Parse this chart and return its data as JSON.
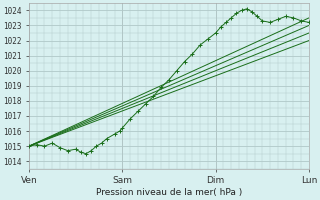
{
  "title": "Pression niveau de la mer( hPa )",
  "bg_color": "#d8f0f0",
  "grid_color": "#b0c8c8",
  "line_color": "#1a6e1a",
  "ylim": [
    1013.5,
    1024.5
  ],
  "yticks": [
    1014,
    1015,
    1016,
    1017,
    1018,
    1019,
    1020,
    1021,
    1022,
    1023,
    1024
  ],
  "day_labels": [
    "Ven",
    "Sam",
    "Dim",
    "Lun"
  ],
  "day_positions": [
    0,
    72,
    144,
    216
  ],
  "total_hours": 216,
  "linear_lines": [
    {
      "x": [
        0,
        216
      ],
      "y": [
        1015.0,
        1023.5
      ]
    },
    {
      "x": [
        0,
        216
      ],
      "y": [
        1015.0,
        1023.0
      ]
    },
    {
      "x": [
        0,
        216
      ],
      "y": [
        1015.0,
        1022.5
      ]
    },
    {
      "x": [
        0,
        216
      ],
      "y": [
        1015.0,
        1022.0
      ]
    }
  ],
  "forecast_x": [
    0,
    6,
    12,
    18,
    24,
    30,
    36,
    40,
    44,
    48,
    52,
    56,
    60,
    66,
    70,
    72,
    78,
    84,
    90,
    96,
    102,
    108,
    114,
    120,
    126,
    132,
    138,
    144,
    148,
    152,
    156,
    160,
    164,
    168,
    172,
    176,
    180,
    186,
    192,
    198,
    204,
    210,
    216
  ],
  "forecast_y": [
    1015.0,
    1015.1,
    1015.0,
    1015.2,
    1014.9,
    1014.7,
    1014.8,
    1014.6,
    1014.5,
    1014.7,
    1015.0,
    1015.2,
    1015.5,
    1015.8,
    1016.0,
    1016.2,
    1016.8,
    1017.3,
    1017.8,
    1018.3,
    1018.9,
    1019.4,
    1020.0,
    1020.6,
    1021.1,
    1021.7,
    1022.1,
    1022.5,
    1022.9,
    1023.2,
    1023.5,
    1023.8,
    1024.0,
    1024.1,
    1023.9,
    1023.6,
    1023.3,
    1023.2,
    1023.4,
    1023.6,
    1023.5,
    1023.3,
    1023.2
  ]
}
